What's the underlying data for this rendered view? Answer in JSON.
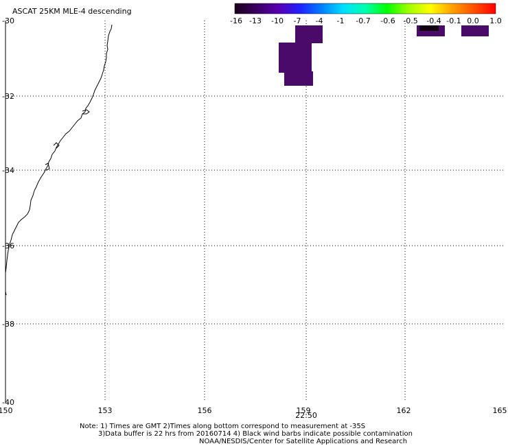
{
  "title": "ASCAT 25KM MLE-4 descending",
  "colorbar": {
    "labels": [
      "-16",
      "-13",
      "-10",
      "-7",
      "-4",
      "-1",
      "-0.7",
      "-0.6",
      "-0.5",
      "-0.4",
      "-0.1",
      "0.0",
      "1.0"
    ],
    "gradient": [
      "#1a001a",
      "#3a0060",
      "#5a00b0",
      "#2020ff",
      "#0080ff",
      "#00e0ff",
      "#00ffb0",
      "#00ff00",
      "#a0ff00",
      "#ffff00",
      "#ffa000",
      "#ff5000",
      "#ff0000"
    ]
  },
  "map": {
    "lat_labels": [
      "-30",
      "-32",
      "-34",
      "-36",
      "-38",
      "-40"
    ],
    "lon_labels": [
      "150",
      "153",
      "156",
      "159",
      "162",
      "165"
    ],
    "time_label": "22:50",
    "time_color": "#cc0000",
    "data_color": "#4a0a6a",
    "dark_color": "#100010"
  },
  "notes": {
    "line1": "Note: 1) Times are GMT 2)Times along bottom correspond to measurement at -35S",
    "line2": "3)Data buffer is 22 hrs from 20160714 4) Black wind barbs indicate possible contamination",
    "line3": "NOAA/NESDIS/Center for Satellite Applications and Research"
  }
}
